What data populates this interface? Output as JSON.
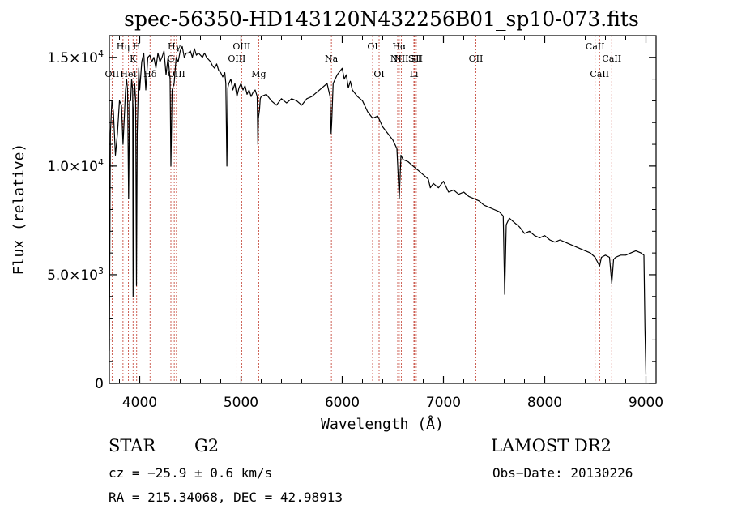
{
  "chart_data": {
    "type": "line",
    "title": "spec-56350-HD143120N432256B01_sp10-073.fits",
    "xlabel": "Wavelength (Å)",
    "ylabel": "Flux (relative)",
    "xlim": [
      3700,
      9100
    ],
    "ylim": [
      0,
      16000
    ],
    "x_ticks": [
      4000,
      5000,
      6000,
      7000,
      8000,
      9000
    ],
    "x_tick_labels": [
      "4000",
      "5000",
      "6000",
      "7000",
      "8000",
      "9000"
    ],
    "y_ticks": [
      0,
      5000,
      10000,
      15000
    ],
    "y_tick_labels": [
      {
        "value": 0,
        "mantissa": "0",
        "exponent": ""
      },
      {
        "value": 5000,
        "mantissa": "5.0×10",
        "exponent": "3"
      },
      {
        "value": 10000,
        "mantissa": "1.0×10",
        "exponent": "4"
      },
      {
        "value": 15000,
        "mantissa": "1.5×10",
        "exponent": "4"
      }
    ],
    "grid": false,
    "series": [
      {
        "color": "#000000",
        "x": [
          3700,
          3710,
          3725,
          3740,
          3760,
          3780,
          3800,
          3820,
          3835,
          3850,
          3860,
          3870,
          3880,
          3890,
          3900,
          3910,
          3920,
          3930,
          3934,
          3940,
          3950,
          3960,
          3968,
          3975,
          3990,
          4000,
          4020,
          4040,
          4060,
          4080,
          4100,
          4120,
          4140,
          4160,
          4180,
          4200,
          4220,
          4240,
          4260,
          4280,
          4300,
          4308,
          4320,
          4340,
          4360,
          4380,
          4400,
          4420,
          4440,
          4460,
          4480,
          4500,
          4520,
          4540,
          4560,
          4580,
          4600,
          4620,
          4640,
          4660,
          4680,
          4700,
          4720,
          4740,
          4760,
          4780,
          4800,
          4820,
          4840,
          4850,
          4861,
          4870,
          4880,
          4900,
          4920,
          4940,
          4960,
          4980,
          5000,
          5020,
          5040,
          5060,
          5080,
          5100,
          5120,
          5140,
          5160,
          5167,
          5172,
          5183,
          5190,
          5200,
          5250,
          5300,
          5350,
          5400,
          5450,
          5500,
          5550,
          5600,
          5650,
          5700,
          5750,
          5800,
          5850,
          5880,
          5890,
          5896,
          5910,
          5950,
          6000,
          6020,
          6040,
          6060,
          6080,
          6100,
          6150,
          6200,
          6250,
          6300,
          6350,
          6400,
          6450,
          6500,
          6540,
          6563,
          6580,
          6600,
          6650,
          6700,
          6750,
          6800,
          6850,
          6870,
          6900,
          6950,
          7000,
          7050,
          7100,
          7150,
          7200,
          7250,
          7300,
          7350,
          7400,
          7450,
          7500,
          7550,
          7590,
          7605,
          7620,
          7650,
          7700,
          7750,
          7800,
          7850,
          7900,
          7950,
          8000,
          8050,
          8100,
          8150,
          8200,
          8250,
          8300,
          8350,
          8400,
          8450,
          8498,
          8520,
          8542,
          8560,
          8600,
          8640,
          8662,
          8680,
          8700,
          8750,
          8800,
          8850,
          8900,
          8950,
          8980,
          8990,
          9000
        ],
        "y": [
          1500,
          11500,
          13000,
          12500,
          10500,
          11500,
          13000,
          12800,
          11000,
          12500,
          13500,
          14000,
          13500,
          8500,
          13000,
          13000,
          14000,
          13500,
          4000,
          12500,
          13800,
          13000,
          4500,
          11500,
          14500,
          13500,
          14800,
          15200,
          13500,
          15000,
          15100,
          14800,
          15000,
          14500,
          15200,
          14800,
          15000,
          15300,
          14200,
          15000,
          14000,
          10000,
          13500,
          13800,
          15000,
          14800,
          15300,
          15500,
          15000,
          15200,
          15200,
          15300,
          15000,
          15400,
          15100,
          15200,
          15100,
          15000,
          15200,
          15000,
          14900,
          14800,
          14600,
          14500,
          14700,
          14400,
          14300,
          14100,
          14300,
          13800,
          10000,
          13600,
          13800,
          14000,
          13500,
          13800,
          13200,
          13600,
          13800,
          13500,
          13700,
          13300,
          13500,
          13200,
          13400,
          13500,
          13200,
          11000,
          12200,
          12600,
          13100,
          13200,
          13300,
          13000,
          12800,
          13100,
          12900,
          13100,
          13000,
          12800,
          13100,
          13200,
          13400,
          13600,
          13800,
          13200,
          11500,
          12000,
          13800,
          14200,
          14500,
          14000,
          14200,
          13600,
          13900,
          13500,
          13200,
          13000,
          12500,
          12200,
          12300,
          11800,
          11500,
          11200,
          10800,
          8500,
          10500,
          10300,
          10200,
          10000,
          9800,
          9600,
          9400,
          9000,
          9200,
          9000,
          9300,
          8800,
          8900,
          8700,
          8800,
          8600,
          8500,
          8400,
          8200,
          8100,
          8000,
          7900,
          7700,
          4100,
          7300,
          7600,
          7400,
          7200,
          6900,
          7000,
          6800,
          6700,
          6800,
          6600,
          6500,
          6600,
          6500,
          6400,
          6300,
          6200,
          6100,
          6000,
          5800,
          5600,
          5400,
          5800,
          5900,
          5800,
          4600,
          5700,
          5800,
          5900,
          5900,
          6000,
          6100,
          6000,
          5900,
          2500,
          400
        ]
      }
    ],
    "line_markers": [
      {
        "wl": 3727,
        "label": "OII",
        "row": 3
      },
      {
        "wl": 3835,
        "label": "Hη",
        "row": 1
      },
      {
        "wl": 3889,
        "label": "HeI",
        "row": 3
      },
      {
        "wl": 3934,
        "label": "K",
        "row": 2
      },
      {
        "wl": 3970,
        "label": "H",
        "row": 1
      },
      {
        "wl": 4102,
        "label": "Hδ",
        "row": 3
      },
      {
        "wl": 4308,
        "label": "G",
        "row": 2
      },
      {
        "wl": 4341,
        "label": "Hγ",
        "row": 1
      },
      {
        "wl": 4363,
        "label": "OIII",
        "row": 3
      },
      {
        "wl": 4959,
        "label": "OIII",
        "row": 2
      },
      {
        "wl": 5007,
        "label": "OIII",
        "row": 1
      },
      {
        "wl": 5175,
        "label": "Mg",
        "row": 3
      },
      {
        "wl": 5893,
        "label": "Na",
        "row": 2
      },
      {
        "wl": 6300,
        "label": "OI",
        "row": 1
      },
      {
        "wl": 6364,
        "label": "OI",
        "row": 3
      },
      {
        "wl": 6548,
        "label": "NII",
        "row": 2
      },
      {
        "wl": 6563,
        "label": "Hα",
        "row": 1
      },
      {
        "wl": 6583,
        "label": "NII",
        "row": 2
      },
      {
        "wl": 6708,
        "label": "Li",
        "row": 3
      },
      {
        "wl": 6716,
        "label": "SII",
        "row": 2
      },
      {
        "wl": 6731,
        "label": "SII",
        "row": 2
      },
      {
        "wl": 7320,
        "label": "OII",
        "row": 2
      },
      {
        "wl": 8498,
        "label": "CaII",
        "row": 1
      },
      {
        "wl": 8542,
        "label": "CaII",
        "row": 3
      },
      {
        "wl": 8662,
        "label": "CaII",
        "row": 2
      }
    ],
    "line_marker_color": "#c0392b"
  },
  "info": {
    "object_class": "STAR",
    "subclass": "G2",
    "survey": "LAMOST DR2",
    "cz": "cz = −25.9 ± 0.6 km/s",
    "obs_date": "Obs−Date: 20130226",
    "radec": "RA = 215.34068, DEC =  42.98913"
  }
}
